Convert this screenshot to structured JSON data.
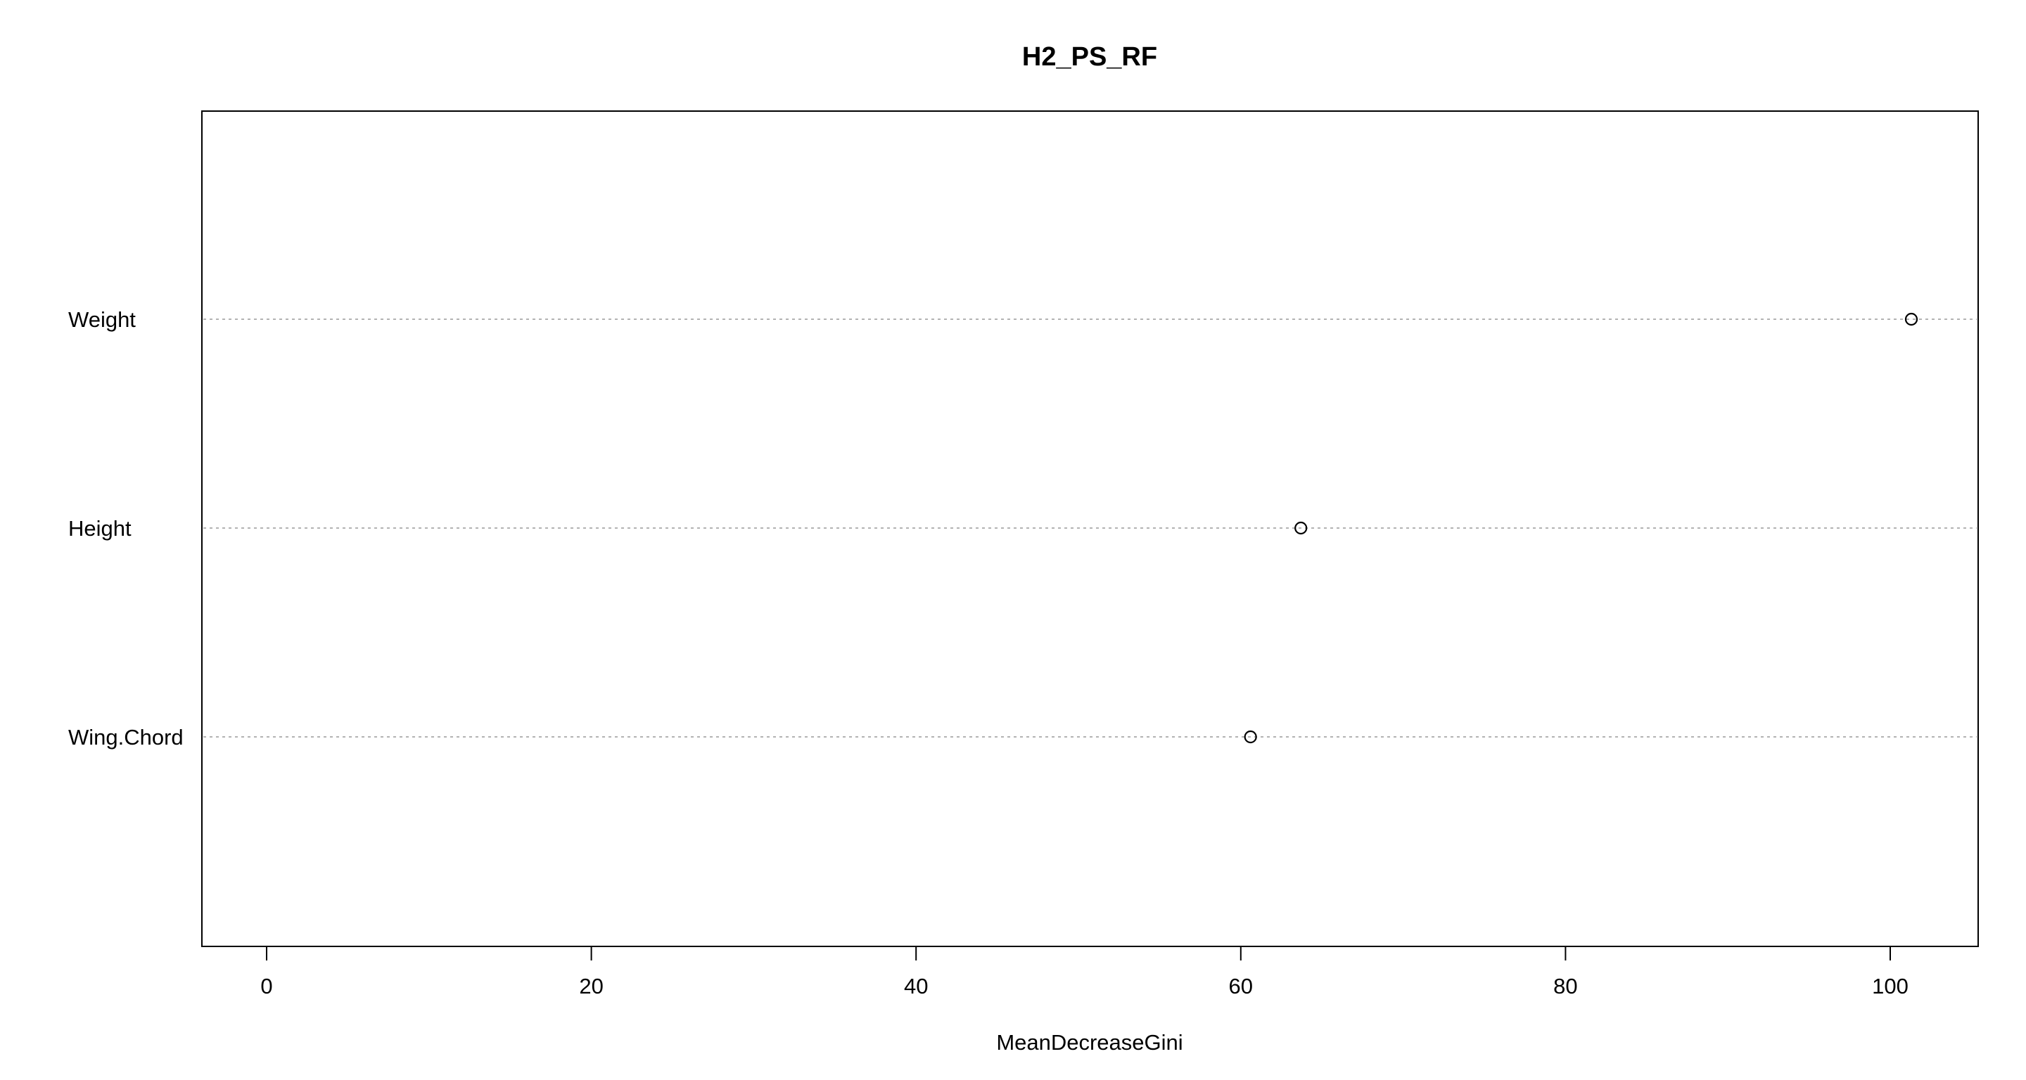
{
  "chart_data": {
    "type": "scatter",
    "title": "H2_PS_RF",
    "xlabel": "MeanDecreaseGini",
    "ylabel": "",
    "xlim": [
      -4,
      105
    ],
    "x_ticks": [
      0,
      20,
      40,
      60,
      80,
      100
    ],
    "x_tick_labels": [
      "0",
      "20",
      "40",
      "60",
      "80",
      "100"
    ],
    "categories": [
      "Weight",
      "Height",
      "Wing.Chord"
    ],
    "values": [
      101.3,
      63.7,
      60.6
    ],
    "grid": "dotted horizontal lines per category",
    "legend": "none",
    "colors": {
      "point_stroke": "#000000",
      "grid": "#b3b3b3",
      "frame": "#000000"
    }
  }
}
